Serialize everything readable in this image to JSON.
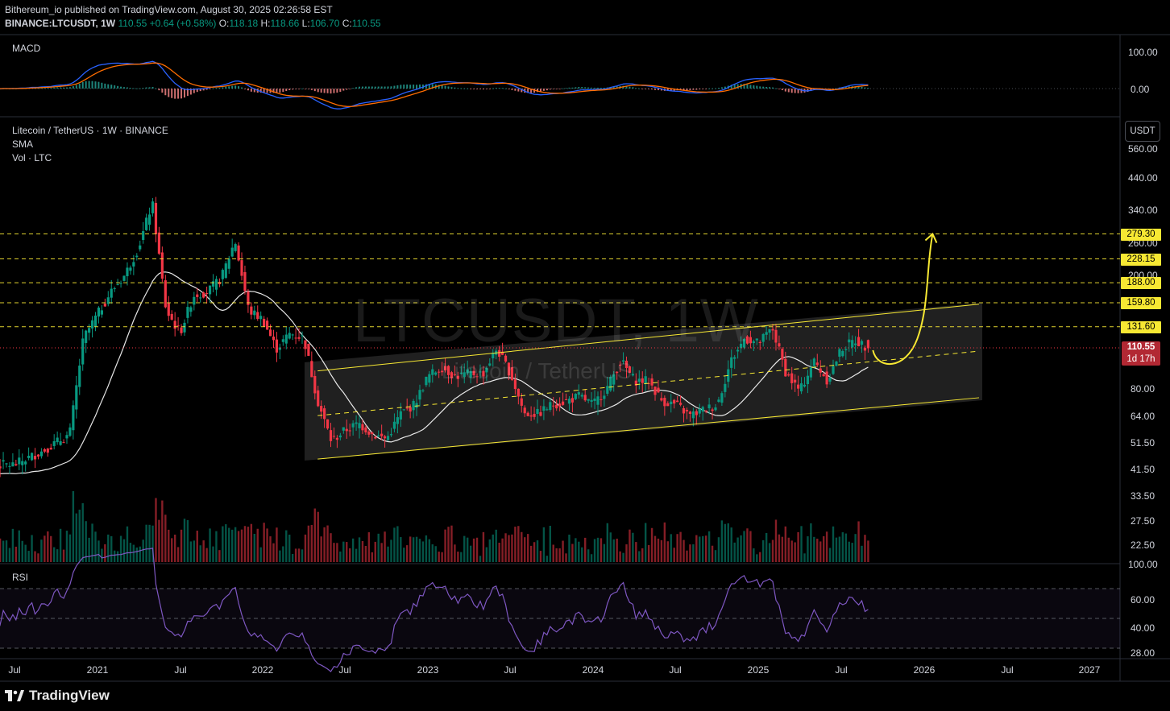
{
  "header": {
    "publisher_line": "Bithereum_io published on TradingView.com, August 30, 2025 02:26:58 EST",
    "symbol": "BINANCE:LTCUSDT, 1W",
    "last": "110.55",
    "change": "+0.64 (+0.58%)",
    "o_label": "O:",
    "o": "118.18",
    "h_label": "H:",
    "h": "118.66",
    "l_label": "L:",
    "l": "106.70",
    "c_label": "C:",
    "c": "110.55"
  },
  "macd_pane": {
    "label": "MACD",
    "ticks": [
      "100.00",
      "0.00"
    ]
  },
  "main_pane": {
    "title": "Litecoin / TetherUS · 1W · BINANCE",
    "indicator_1": "SMA",
    "indicator_2": "Vol · LTC",
    "currency_button": "USDT",
    "watermark": "LTCUSDT, 1W",
    "watermark_sub": "Litecoin / TetherUS",
    "price_ticks": [
      "560.00",
      "440.00",
      "340.00",
      "260.00",
      "200.00",
      "80.00",
      "64.00",
      "51.50",
      "41.50",
      "33.50",
      "27.50",
      "22.50"
    ],
    "level_tags": [
      "279.30",
      "228.15",
      "188.00",
      "159.80",
      "131.60"
    ],
    "last_price_tag": {
      "price": "110.55",
      "countdown": "1d 17h"
    }
  },
  "rsi_pane": {
    "label": "RSI",
    "ticks": [
      "100.00",
      "60.00",
      "40.00",
      "28.00"
    ]
  },
  "time_axis": [
    "Jul",
    "2021",
    "Jul",
    "2022",
    "Jul",
    "2023",
    "Jul",
    "2024",
    "Jul",
    "2025",
    "Jul",
    "2026",
    "Jul",
    "2027"
  ],
  "footer": {
    "brand": "TradingView"
  },
  "colors": {
    "up": "#089981",
    "down": "#f23645",
    "sma": "#ffffff",
    "level": "#f7e833",
    "rsi": "#7e57c2",
    "macd": "#2962ff",
    "signal": "#ff6d00"
  },
  "chart_data": {
    "type": "candlestick",
    "title": "Litecoin / TetherUS · 1W · BINANCE",
    "symbol": "LTCUSDT",
    "interval": "1W",
    "y_scale": "log",
    "ylim": [
      18,
      700
    ],
    "xlim": [
      "2020-06",
      "2027-03"
    ],
    "anchors_weekly_close": [
      [
        "2020-07",
        43
      ],
      [
        "2020-09",
        48
      ],
      [
        "2020-11",
        55
      ],
      [
        "2020-12",
        120
      ],
      [
        "2021-02",
        175
      ],
      [
        "2021-03",
        200
      ],
      [
        "2021-04",
        250
      ],
      [
        "2021-05",
        360
      ],
      [
        "2021-06",
        150
      ],
      [
        "2021-07",
        125
      ],
      [
        "2021-08",
        170
      ],
      [
        "2021-09",
        175
      ],
      [
        "2021-10",
        195
      ],
      [
        "2021-11",
        265
      ],
      [
        "2021-12",
        150
      ],
      [
        "2022-01",
        140
      ],
      [
        "2022-02",
        110
      ],
      [
        "2022-03",
        125
      ],
      [
        "2022-04",
        120
      ],
      [
        "2022-05",
        72
      ],
      [
        "2022-06",
        52
      ],
      [
        "2022-07",
        57
      ],
      [
        "2022-08",
        60
      ],
      [
        "2022-09",
        55
      ],
      [
        "2022-10",
        53
      ],
      [
        "2022-11",
        65
      ],
      [
        "2022-12",
        70
      ],
      [
        "2023-01",
        88
      ],
      [
        "2023-02",
        95
      ],
      [
        "2023-03",
        88
      ],
      [
        "2023-04",
        90
      ],
      [
        "2023-05",
        90
      ],
      [
        "2023-06",
        110
      ],
      [
        "2023-07",
        90
      ],
      [
        "2023-08",
        65
      ],
      [
        "2023-09",
        65
      ],
      [
        "2023-10",
        70
      ],
      [
        "2023-11",
        72
      ],
      [
        "2023-12",
        75
      ],
      [
        "2024-01",
        70
      ],
      [
        "2024-02",
        80
      ],
      [
        "2024-03",
        100
      ],
      [
        "2024-04",
        85
      ],
      [
        "2024-05",
        85
      ],
      [
        "2024-06",
        72
      ],
      [
        "2024-07",
        70
      ],
      [
        "2024-08",
        64
      ],
      [
        "2024-09",
        67
      ],
      [
        "2024-10",
        70
      ],
      [
        "2024-11",
        100
      ],
      [
        "2024-12",
        120
      ],
      [
        "2025-01",
        115
      ],
      [
        "2025-02",
        130
      ],
      [
        "2025-03",
        90
      ],
      [
        "2025-04",
        78
      ],
      [
        "2025-05",
        100
      ],
      [
        "2025-06",
        85
      ],
      [
        "2025-07",
        110
      ],
      [
        "2025-08",
        118
      ],
      [
        "2025-08-30",
        110.55
      ]
    ],
    "last": {
      "open": 118.18,
      "high": 118.66,
      "low": 106.7,
      "close": 110.55,
      "change": 0.64,
      "change_pct": 0.58
    },
    "horizontal_levels": [
      279.3,
      228.15,
      188.0,
      159.8,
      131.6
    ],
    "channel": {
      "upper": [
        [
          "2022-05",
          92
        ],
        [
          "2026-05",
          158
        ]
      ],
      "lower": [
        [
          "2022-05",
          45
        ],
        [
          "2026-05",
          74
        ]
      ],
      "mid": [
        [
          "2022-05",
          64
        ],
        [
          "2026-05",
          108
        ]
      ]
    },
    "projection_target": 279.3,
    "indicators": [
      "MACD",
      "SMA",
      "Vol · LTC",
      "RSI"
    ],
    "rsi_levels": [
      70,
      50,
      30
    ]
  }
}
